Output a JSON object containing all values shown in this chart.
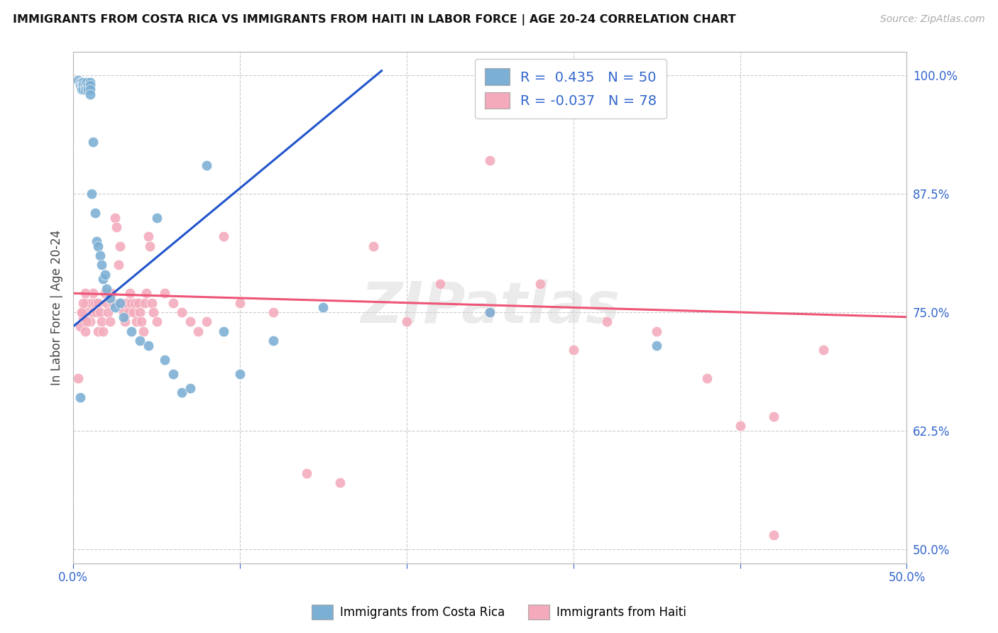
{
  "title": "IMMIGRANTS FROM COSTA RICA VS IMMIGRANTS FROM HAITI IN LABOR FORCE | AGE 20-24 CORRELATION CHART",
  "source": "Source: ZipAtlas.com",
  "ylabel": "In Labor Force | Age 20-24",
  "xlim": [
    0.0,
    0.5
  ],
  "ylim": [
    0.485,
    1.025
  ],
  "xtick_positions": [
    0.0,
    0.1,
    0.2,
    0.3,
    0.4,
    0.5
  ],
  "xticklabels_show": {
    "0.0": "0.0%",
    "0.5": "50.0%"
  },
  "yticks_right": [
    0.5,
    0.625,
    0.75,
    0.875,
    1.0
  ],
  "yticklabels_right": [
    "50.0%",
    "62.5%",
    "75.0%",
    "87.5%",
    "100.0%"
  ],
  "legend_r_costa_rica": "0.435",
  "legend_n_costa_rica": "50",
  "legend_r_haiti": "-0.037",
  "legend_n_haiti": "78",
  "blue_color": "#7BAFD4",
  "pink_color": "#F4AABB",
  "trend_blue": "#2255CC",
  "trend_pink": "#EE5577",
  "watermark": "ZIPatlas",
  "blue_trend_x": [
    0.0,
    0.185
  ],
  "blue_trend_y": [
    0.735,
    1.005
  ],
  "pink_trend_x": [
    0.0,
    0.5
  ],
  "pink_trend_y": [
    0.77,
    0.745
  ],
  "costa_rica_x": [
    0.003,
    0.004,
    0.004,
    0.005,
    0.005,
    0.005,
    0.005,
    0.006,
    0.006,
    0.006,
    0.007,
    0.007,
    0.008,
    0.008,
    0.009,
    0.009,
    0.01,
    0.01,
    0.01,
    0.01,
    0.011,
    0.012,
    0.013,
    0.014,
    0.015,
    0.016,
    0.017,
    0.018,
    0.019,
    0.02,
    0.022,
    0.025,
    0.028,
    0.03,
    0.035,
    0.04,
    0.045,
    0.05,
    0.055,
    0.06,
    0.065,
    0.07,
    0.08,
    0.09,
    0.1,
    0.12,
    0.15,
    0.25,
    0.35,
    0.004
  ],
  "costa_rica_y": [
    0.995,
    0.993,
    0.99,
    0.993,
    0.99,
    0.988,
    0.985,
    0.993,
    0.99,
    0.985,
    0.99,
    0.985,
    0.993,
    0.987,
    0.99,
    0.985,
    0.993,
    0.99,
    0.985,
    0.98,
    0.875,
    0.93,
    0.855,
    0.825,
    0.82,
    0.81,
    0.8,
    0.785,
    0.79,
    0.775,
    0.765,
    0.755,
    0.76,
    0.745,
    0.73,
    0.72,
    0.715,
    0.85,
    0.7,
    0.685,
    0.665,
    0.67,
    0.905,
    0.73,
    0.685,
    0.72,
    0.755,
    0.75,
    0.715,
    0.66
  ],
  "haiti_x": [
    0.003,
    0.004,
    0.005,
    0.006,
    0.007,
    0.008,
    0.009,
    0.01,
    0.011,
    0.012,
    0.012,
    0.013,
    0.014,
    0.015,
    0.015,
    0.016,
    0.017,
    0.018,
    0.019,
    0.02,
    0.021,
    0.022,
    0.023,
    0.024,
    0.025,
    0.026,
    0.027,
    0.028,
    0.029,
    0.03,
    0.031,
    0.032,
    0.033,
    0.034,
    0.035,
    0.036,
    0.037,
    0.038,
    0.039,
    0.04,
    0.041,
    0.042,
    0.043,
    0.044,
    0.045,
    0.046,
    0.047,
    0.048,
    0.05,
    0.055,
    0.06,
    0.065,
    0.07,
    0.075,
    0.08,
    0.09,
    0.1,
    0.12,
    0.14,
    0.16,
    0.18,
    0.2,
    0.22,
    0.25,
    0.28,
    0.3,
    0.32,
    0.35,
    0.38,
    0.4,
    0.42,
    0.45,
    0.25,
    0.42,
    0.005,
    0.006,
    0.007,
    0.008
  ],
  "haiti_y": [
    0.68,
    0.735,
    0.75,
    0.745,
    0.73,
    0.76,
    0.75,
    0.74,
    0.76,
    0.75,
    0.77,
    0.76,
    0.75,
    0.73,
    0.76,
    0.75,
    0.74,
    0.73,
    0.77,
    0.76,
    0.75,
    0.74,
    0.77,
    0.76,
    0.85,
    0.84,
    0.8,
    0.82,
    0.76,
    0.75,
    0.74,
    0.76,
    0.75,
    0.77,
    0.76,
    0.75,
    0.76,
    0.74,
    0.76,
    0.75,
    0.74,
    0.73,
    0.76,
    0.77,
    0.83,
    0.82,
    0.76,
    0.75,
    0.74,
    0.77,
    0.76,
    0.75,
    0.74,
    0.73,
    0.74,
    0.83,
    0.76,
    0.75,
    0.58,
    0.57,
    0.82,
    0.74,
    0.78,
    0.75,
    0.78,
    0.71,
    0.74,
    0.73,
    0.68,
    0.63,
    0.64,
    0.71,
    0.91,
    0.515,
    0.75,
    0.76,
    0.77,
    0.74
  ]
}
